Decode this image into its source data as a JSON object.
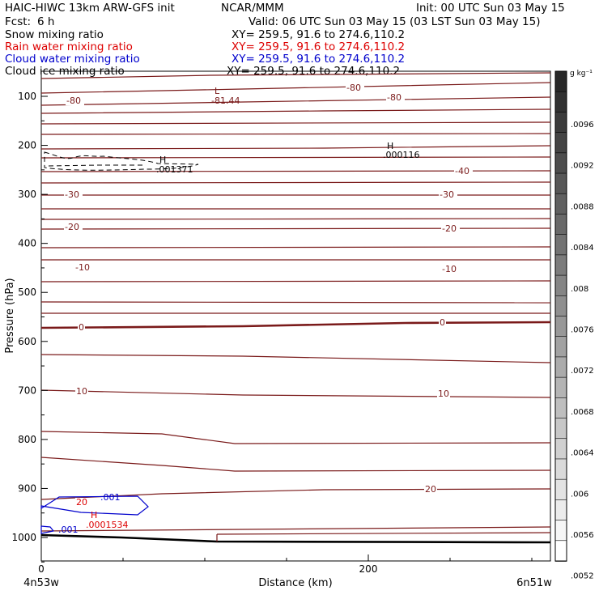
{
  "header": {
    "title_left": "HAIC-HIWC 13km ARW-GFS init",
    "title_center": "NCAR/MMM",
    "init": "Init: 00 UTC Sun 03 May 15",
    "fcst_label": "Fcst:",
    "fcst_value": "6 h",
    "valid": "Valid: 06 UTC Sun 03 May 15 (03 LST Sun 03 May 15)",
    "fields": [
      {
        "name": "Snow mixing ratio",
        "xy": "XY= 259.5, 91.6 to 274.6,110.2",
        "color": "#000000"
      },
      {
        "name": "Rain water mixing ratio",
        "xy": "XY= 259.5, 91.6 to 274.6,110.2",
        "color": "#dd0000"
      },
      {
        "name": "Cloud water mixing ratio",
        "xy": "XY= 259.5, 91.6 to 274.6,110.2",
        "color": "#0000cc"
      },
      {
        "name": "Cloud ice mixing ratio",
        "xy": "XY= 259.5, 91.6 to 274.6,110.2",
        "color": "#000000"
      }
    ]
  },
  "colorbar": {
    "units": "g kg⁻¹",
    "ticks": [
      ".0096",
      ".0092",
      ".0088",
      ".0084",
      ".008",
      ".0076",
      ".0072",
      ".0068",
      ".0064",
      ".006",
      ".0056",
      ".0052"
    ]
  },
  "chart_data": {
    "type": "contour",
    "ylabel": "Pressure (hPa)",
    "xlabel": "Distance (km)",
    "x_ticks": [
      "0",
      "200"
    ],
    "y_ticks": [
      "100",
      "200",
      "300",
      "400",
      "500",
      "600",
      "700",
      "800",
      "900",
      "1000"
    ],
    "ylim": [
      1050,
      50
    ],
    "xlim": [
      0,
      310
    ],
    "x_endpoints": {
      "left": "4n53w",
      "right": "6n51w"
    },
    "temperature_contour_labels": [
      "-80",
      "-80",
      "-80",
      "-40",
      "-30",
      "-30",
      "-20",
      "-20",
      "-10",
      "-10",
      "0",
      "0",
      "10",
      "10",
      "20",
      "20"
    ],
    "extrema_labels": [
      {
        "mark": "L",
        "value": "-81.44"
      },
      {
        "mark": "H",
        "value": ".000116"
      },
      {
        "mark": "H",
        "value": ".001371"
      },
      {
        "mark": "H",
        "value": ".0001534"
      }
    ],
    "cloud_water_labels": [
      ".001",
      ".001"
    ],
    "colors": {
      "temperature": "#7a1a1a",
      "rain": "#dd0000",
      "cloud_water": "#0000cc",
      "terrain": "#000000"
    }
  }
}
